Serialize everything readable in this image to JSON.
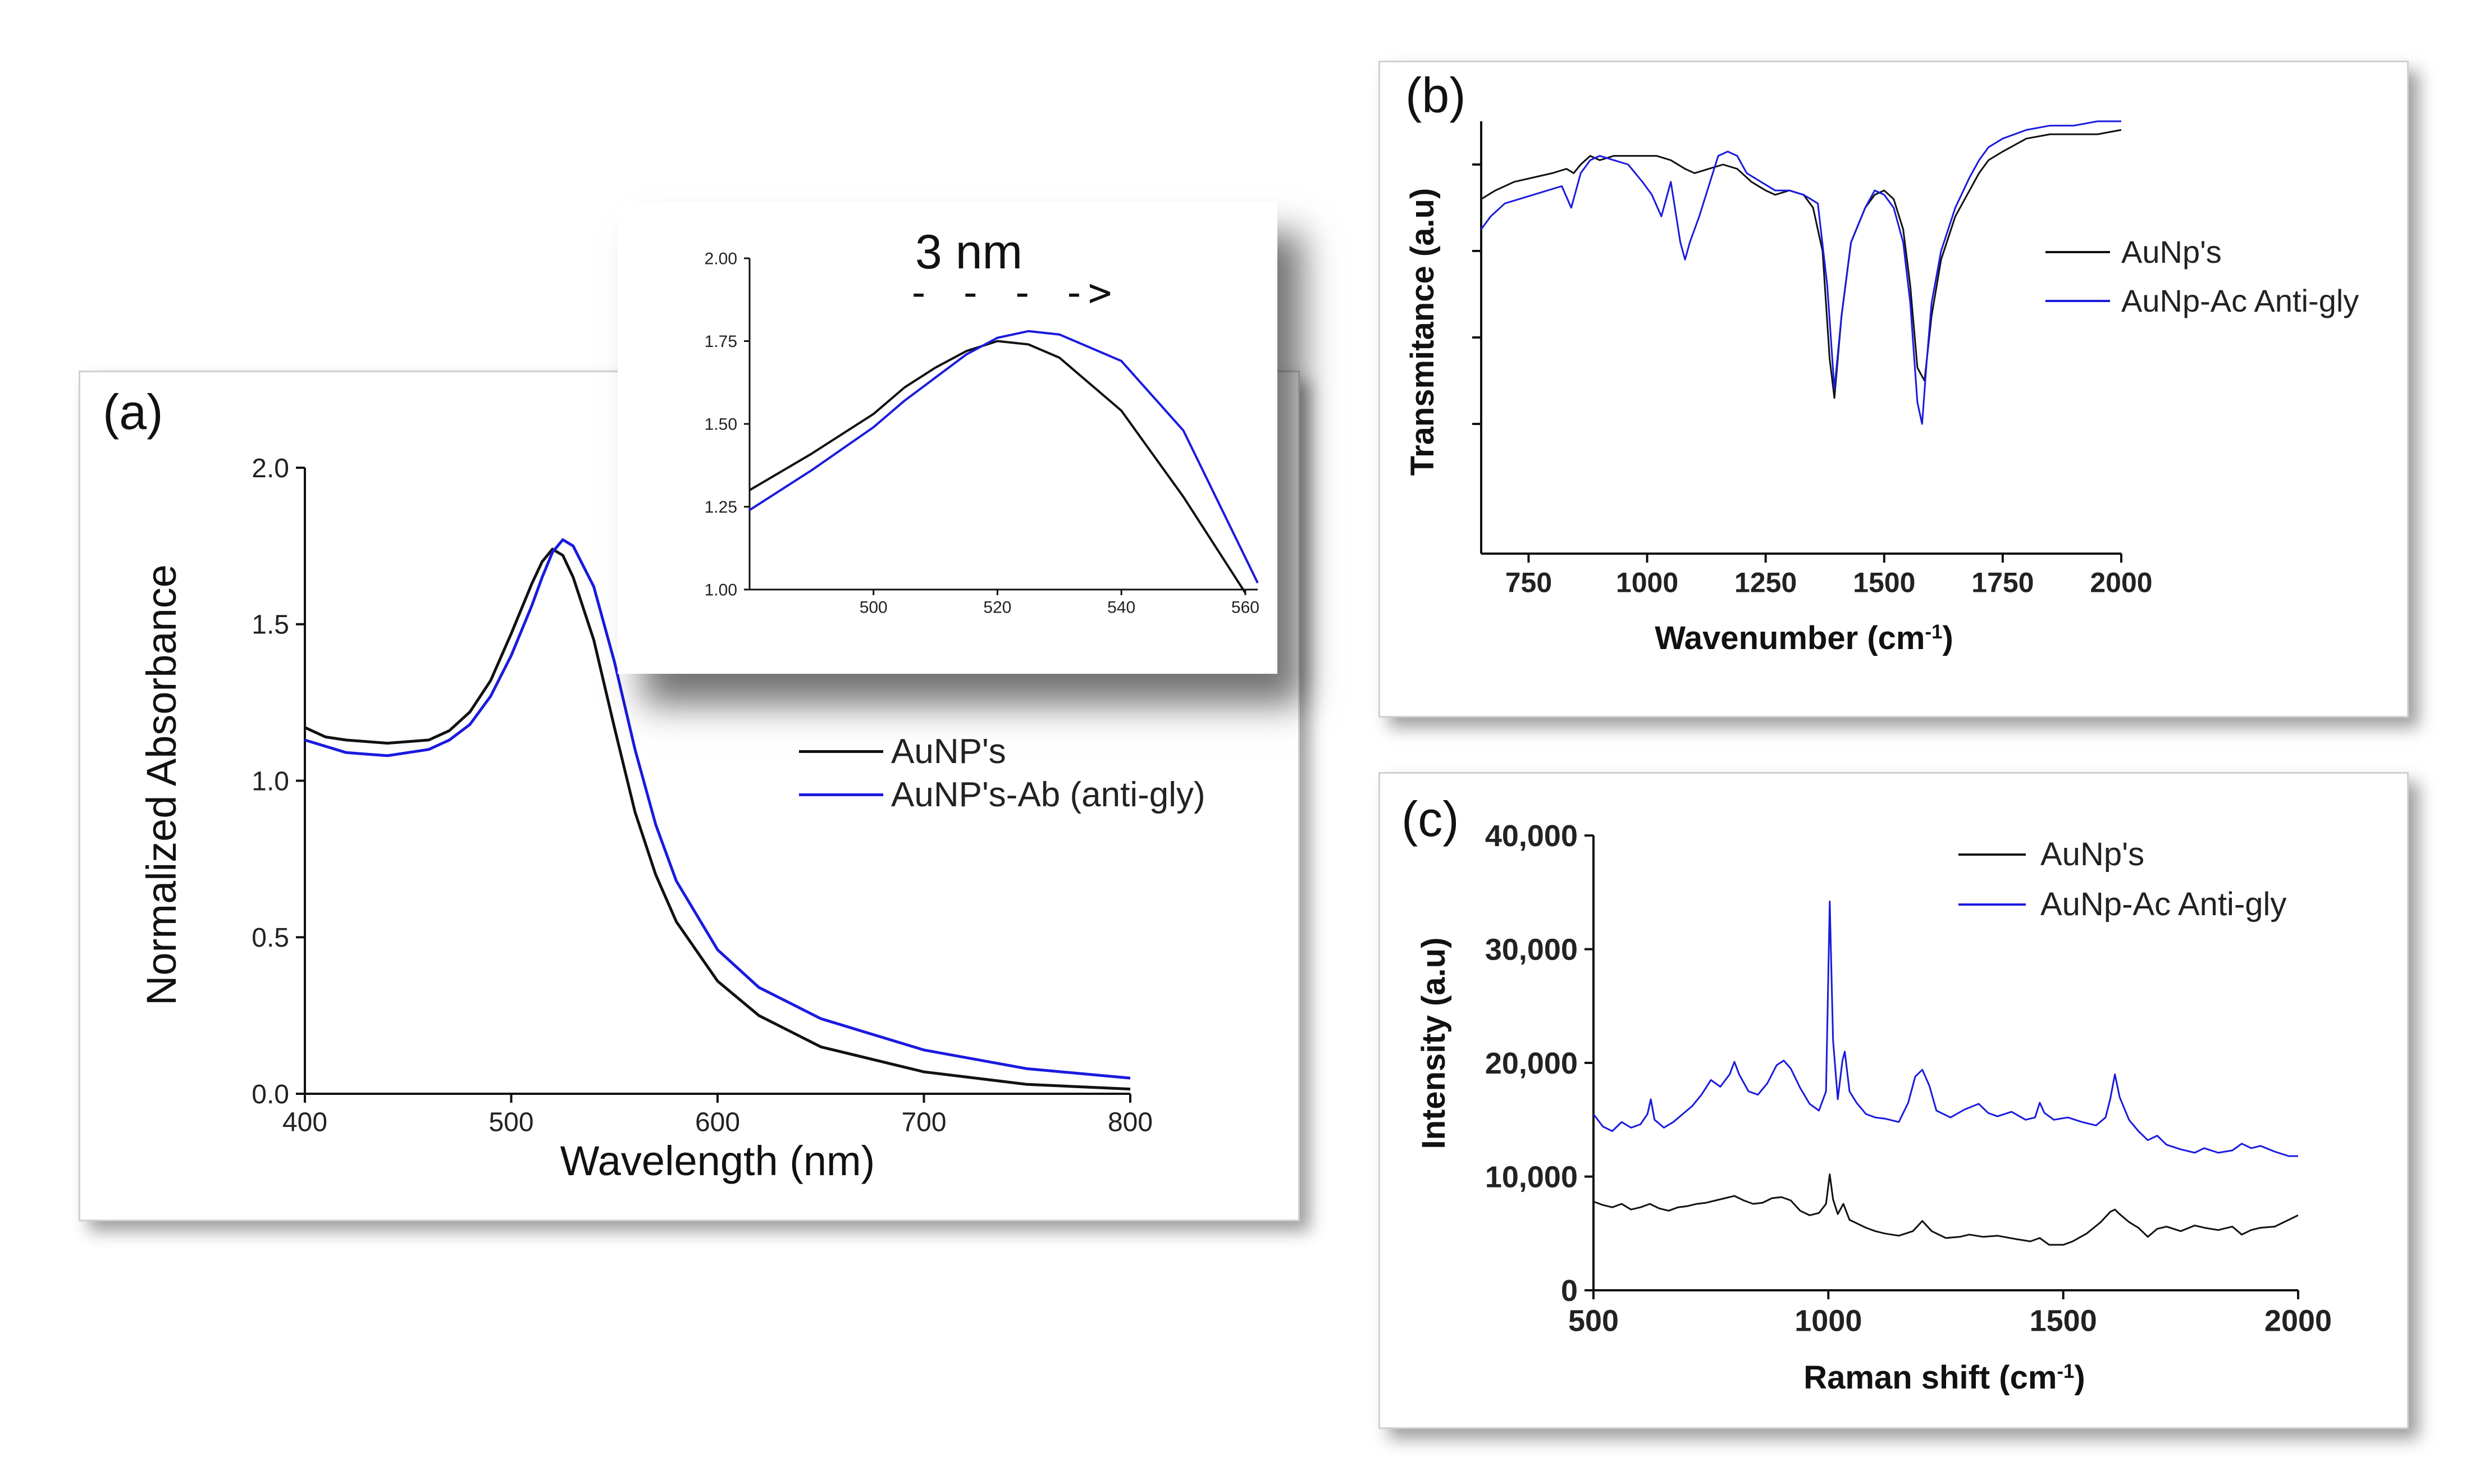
{
  "panels": {
    "a": {
      "letter": "(a)"
    },
    "b": {
      "letter": "(b)"
    },
    "c": {
      "letter": "(c)"
    }
  },
  "inset": {
    "annotation": "3 nm",
    "arrow": "- - - ->"
  },
  "colors": {
    "black": "#111111",
    "blue": "#1a1adf"
  },
  "chart_data": [
    {
      "id": "a",
      "type": "line",
      "title": "",
      "xlabel": "Wavelength (nm)",
      "ylabel": "Normalized Absorbance",
      "xlim": [
        400,
        800
      ],
      "ylim": [
        0,
        2.0
      ],
      "xticks": [
        400,
        500,
        600,
        700,
        800
      ],
      "xtick_labels": [
        "400",
        "500",
        "600",
        "700",
        "800"
      ],
      "yticks": [
        0,
        0.5,
        1.0,
        1.5,
        2.0
      ],
      "ytick_labels": [
        "0.0",
        "0.5",
        "1.0",
        "1.5",
        "2.0"
      ],
      "grid": false,
      "legend": "center-right",
      "series": [
        {
          "name": "AuNP's",
          "color": "#111111",
          "x": [
            400,
            410,
            420,
            440,
            460,
            470,
            480,
            490,
            500,
            510,
            515,
            520,
            525,
            530,
            540,
            550,
            560,
            570,
            580,
            600,
            620,
            650,
            700,
            750,
            800
          ],
          "y": [
            1.17,
            1.14,
            1.13,
            1.12,
            1.13,
            1.16,
            1.22,
            1.32,
            1.47,
            1.63,
            1.7,
            1.74,
            1.72,
            1.65,
            1.45,
            1.17,
            0.9,
            0.7,
            0.55,
            0.36,
            0.25,
            0.15,
            0.07,
            0.03,
            0.015
          ]
        },
        {
          "name": "AuNP's-Ab (anti-gly)",
          "color": "#1a1adf",
          "x": [
            400,
            410,
            420,
            440,
            460,
            470,
            480,
            490,
            500,
            510,
            515,
            520,
            525,
            530,
            540,
            550,
            560,
            570,
            580,
            600,
            620,
            650,
            700,
            750,
            800
          ],
          "y": [
            1.13,
            1.11,
            1.09,
            1.08,
            1.1,
            1.13,
            1.18,
            1.27,
            1.4,
            1.56,
            1.65,
            1.73,
            1.77,
            1.75,
            1.62,
            1.38,
            1.1,
            0.86,
            0.68,
            0.46,
            0.34,
            0.24,
            0.14,
            0.08,
            0.05
          ]
        }
      ]
    },
    {
      "id": "a-inset",
      "type": "line",
      "title": "3 nm",
      "xlabel": "",
      "ylabel": "",
      "xlim": [
        480,
        562
      ],
      "ylim": [
        1.0,
        2.0
      ],
      "xticks": [
        500,
        520,
        540,
        560
      ],
      "xtick_labels": [
        "500",
        "520",
        "540",
        "560"
      ],
      "yticks": [
        1.0,
        1.25,
        1.5,
        1.75,
        2.0
      ],
      "ytick_labels": [
        "1.00",
        "1.25",
        "1.50",
        "1.75",
        "2.00"
      ],
      "grid": false,
      "series": [
        {
          "name": "AuNP's",
          "color": "#111111",
          "x": [
            480,
            490,
            500,
            505,
            510,
            515,
            520,
            525,
            530,
            540,
            550,
            560
          ],
          "y": [
            1.3,
            1.41,
            1.53,
            1.61,
            1.67,
            1.72,
            1.75,
            1.74,
            1.7,
            1.54,
            1.28,
            0.99
          ]
        },
        {
          "name": "AuNP's-Ab (anti-gly)",
          "color": "#1a1adf",
          "x": [
            480,
            490,
            500,
            505,
            510,
            515,
            520,
            525,
            530,
            540,
            550,
            562
          ],
          "y": [
            1.24,
            1.36,
            1.49,
            1.57,
            1.64,
            1.71,
            1.76,
            1.78,
            1.77,
            1.69,
            1.48,
            1.02
          ]
        }
      ]
    },
    {
      "id": "b",
      "type": "line",
      "title": "",
      "xlabel": "Wavenumber (cm",
      "xlabel_sup": "-1",
      "xlabel_end": ")",
      "ylabel": "Transmitance (a.u)",
      "xlim": [
        650,
        2000
      ],
      "ylim": [
        0,
        100
      ],
      "xticks": [
        750,
        1000,
        1250,
        1500,
        1750,
        2000
      ],
      "xtick_labels": [
        "750",
        "1000",
        "1250",
        "1500",
        "1750",
        "2000"
      ],
      "yticks": [
        30,
        50,
        70,
        90
      ],
      "grid": false,
      "legend": "right",
      "series": [
        {
          "name": "AuNp's",
          "color": "#111111",
          "x": [
            650,
            680,
            720,
            760,
            800,
            830,
            845,
            860,
            880,
            900,
            930,
            960,
            990,
            1020,
            1050,
            1080,
            1100,
            1130,
            1160,
            1190,
            1220,
            1250,
            1270,
            1300,
            1330,
            1350,
            1370,
            1385,
            1395,
            1410,
            1430,
            1460,
            1480,
            1500,
            1520,
            1540,
            1555,
            1570,
            1585,
            1600,
            1620,
            1650,
            1680,
            1700,
            1720,
            1750,
            1800,
            1850,
            1900,
            1950,
            2000
          ],
          "y": [
            82,
            84,
            86,
            87,
            88,
            89,
            88,
            90,
            92,
            91,
            92,
            92,
            92,
            92,
            91,
            89,
            88,
            89,
            90,
            89,
            86,
            84,
            83,
            84,
            83,
            80,
            70,
            45,
            36,
            55,
            72,
            80,
            83,
            84,
            82,
            75,
            62,
            43,
            40,
            55,
            68,
            78,
            84,
            88,
            91,
            93,
            96,
            97,
            97,
            97,
            98
          ]
        },
        {
          "name": "AuNp-Ac Anti-gly",
          "color": "#1a1adf",
          "x": [
            650,
            670,
            700,
            730,
            760,
            790,
            820,
            840,
            860,
            880,
            900,
            930,
            960,
            990,
            1010,
            1030,
            1050,
            1070,
            1080,
            1090,
            1110,
            1130,
            1150,
            1170,
            1190,
            1210,
            1240,
            1270,
            1300,
            1330,
            1360,
            1380,
            1395,
            1410,
            1430,
            1460,
            1480,
            1500,
            1520,
            1540,
            1555,
            1570,
            1580,
            1590,
            1600,
            1620,
            1650,
            1680,
            1700,
            1720,
            1750,
            1800,
            1850,
            1900,
            1950,
            2000
          ],
          "y": [
            75,
            78,
            81,
            82,
            83,
            84,
            85,
            80,
            88,
            91,
            92,
            91,
            90,
            86,
            83,
            78,
            86,
            72,
            68,
            72,
            78,
            85,
            92,
            93,
            92,
            88,
            86,
            84,
            84,
            83,
            81,
            62,
            38,
            55,
            72,
            80,
            84,
            83,
            80,
            72,
            58,
            35,
            30,
            45,
            58,
            70,
            80,
            87,
            91,
            94,
            96,
            98,
            99,
            99,
            100,
            100
          ]
        }
      ]
    },
    {
      "id": "c",
      "type": "line",
      "title": "",
      "xlabel": "Raman shift (cm",
      "xlabel_sup": "-1",
      "xlabel_end": ")",
      "ylabel": "Intensity (a.u)",
      "xlim": [
        500,
        2000
      ],
      "ylim": [
        0,
        40000
      ],
      "xticks": [
        500,
        1000,
        1500,
        2000
      ],
      "xtick_labels": [
        "500",
        "1000",
        "1500",
        "2000"
      ],
      "yticks": [
        0,
        10000,
        20000,
        30000,
        40000
      ],
      "ytick_labels": [
        "0",
        "10,000",
        "20,000",
        "30,000",
        "40,000"
      ],
      "grid": false,
      "legend": "top-right",
      "series": [
        {
          "name": "AuNp's",
          "color": "#111111",
          "x": [
            500,
            520,
            540,
            560,
            580,
            600,
            620,
            640,
            660,
            680,
            700,
            720,
            740,
            760,
            780,
            800,
            820,
            840,
            860,
            880,
            900,
            920,
            940,
            960,
            980,
            995,
            1003,
            1010,
            1020,
            1032,
            1045,
            1060,
            1080,
            1100,
            1120,
            1150,
            1180,
            1200,
            1220,
            1250,
            1280,
            1300,
            1330,
            1360,
            1400,
            1430,
            1450,
            1470,
            1500,
            1520,
            1550,
            1580,
            1600,
            1610,
            1620,
            1640,
            1660,
            1680,
            1700,
            1720,
            1750,
            1780,
            1800,
            1830,
            1860,
            1880,
            1900,
            1920,
            1950,
            1980,
            2000
          ],
          "y": [
            7800,
            7500,
            7300,
            7600,
            7100,
            7300,
            7600,
            7200,
            7000,
            7300,
            7400,
            7600,
            7700,
            7900,
            8100,
            8300,
            7900,
            7600,
            7700,
            8100,
            8200,
            7900,
            7000,
            6600,
            6800,
            7600,
            10200,
            8000,
            6700,
            7600,
            6200,
            5900,
            5500,
            5200,
            5000,
            4800,
            5200,
            6100,
            5200,
            4600,
            4700,
            4900,
            4700,
            4800,
            4500,
            4300,
            4600,
            4000,
            4000,
            4300,
            5000,
            6000,
            6900,
            7100,
            6700,
            6000,
            5500,
            4700,
            5400,
            5600,
            5200,
            5700,
            5500,
            5300,
            5600,
            4900,
            5300,
            5500,
            5600,
            6200,
            6600
          ]
        },
        {
          "name": "AuNp-Ac Anti-gly",
          "color": "#1a1adf",
          "x": [
            500,
            520,
            540,
            560,
            580,
            600,
            615,
            622,
            630,
            650,
            670,
            690,
            710,
            730,
            750,
            770,
            790,
            800,
            810,
            830,
            850,
            870,
            890,
            905,
            920,
            940,
            960,
            980,
            995,
            1003,
            1010,
            1020,
            1030,
            1035,
            1045,
            1060,
            1080,
            1100,
            1120,
            1150,
            1170,
            1185,
            1200,
            1215,
            1230,
            1260,
            1290,
            1320,
            1340,
            1360,
            1390,
            1420,
            1440,
            1450,
            1460,
            1480,
            1510,
            1540,
            1570,
            1590,
            1600,
            1610,
            1620,
            1640,
            1660,
            1680,
            1700,
            1720,
            1750,
            1780,
            1800,
            1830,
            1860,
            1880,
            1900,
            1920,
            1950,
            1980,
            2000
          ],
          "y": [
            15500,
            14400,
            14000,
            14800,
            14300,
            14600,
            15500,
            16800,
            15000,
            14300,
            14800,
            15500,
            16200,
            17200,
            18500,
            17900,
            19000,
            20100,
            19000,
            17500,
            17200,
            18200,
            19800,
            20200,
            19500,
            17800,
            16400,
            15800,
            17500,
            34200,
            22000,
            16800,
            20200,
            21000,
            17500,
            16500,
            15500,
            15200,
            15100,
            14800,
            16500,
            18800,
            19400,
            18000,
            15800,
            15200,
            15900,
            16400,
            15600,
            15300,
            15700,
            15000,
            15200,
            16500,
            15600,
            15000,
            15200,
            14800,
            14500,
            15200,
            16800,
            19000,
            17000,
            15000,
            14000,
            13200,
            13600,
            12800,
            12400,
            12100,
            12500,
            12100,
            12300,
            12900,
            12500,
            12700,
            12200,
            11800,
            11800
          ]
        }
      ]
    }
  ]
}
